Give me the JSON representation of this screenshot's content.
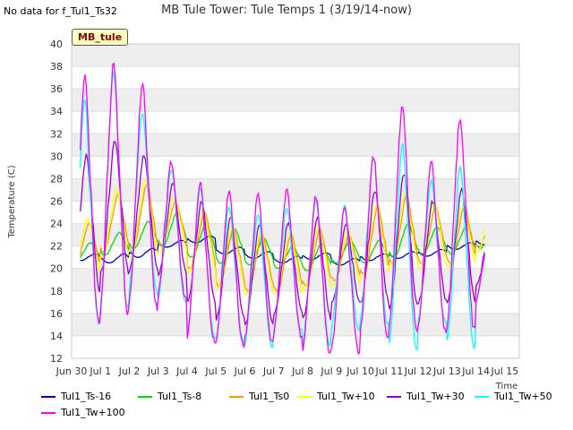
{
  "no_data_text": "No data for f_Tul1_Ts32",
  "station_tag": "MB_tule",
  "chart_data": {
    "type": "line",
    "title": "MB Tule Tower: Tule Temps 1 (3/19/14-now)",
    "xlabel": "Time",
    "ylabel": "Temperature (C)",
    "ylim": [
      12,
      40
    ],
    "yticks": [
      12,
      14,
      16,
      18,
      20,
      22,
      24,
      26,
      28,
      30,
      32,
      34,
      36,
      38,
      40
    ],
    "xlim": [
      0,
      15.5
    ],
    "xticks": [
      {
        "label": "Jun 30",
        "x": 0
      },
      {
        "label": "Jul 1",
        "x": 1
      },
      {
        "label": "Jul 2",
        "x": 2
      },
      {
        "label": "Jul 3",
        "x": 3
      },
      {
        "label": "Jul 4",
        "x": 4
      },
      {
        "label": "Jul 5",
        "x": 5
      },
      {
        "label": "Jul 6",
        "x": 6
      },
      {
        "label": "Jul 7",
        "x": 7
      },
      {
        "label": "Jul 8",
        "x": 8
      },
      {
        "label": "Jul 9",
        "x": 9
      },
      {
        "label": "Jul 10",
        "x": 10
      },
      {
        "label": "Jul 11",
        "x": 11
      },
      {
        "label": "Jul 12",
        "x": 12
      },
      {
        "label": "Jul 13",
        "x": 13
      },
      {
        "label": "Jul 14",
        "x": 14
      },
      {
        "label": "Jul 15",
        "x": 15
      }
    ],
    "grid": true,
    "legend_position": "bottom",
    "x_range_data": [
      0.3,
      14.3
    ],
    "series": [
      {
        "name": "Tul1_Ts-16",
        "color": "#0000cc",
        "mean": [
          21.0,
          20.9,
          21.4,
          22.2,
          22.6,
          21.6,
          21.2,
          20.8,
          21.1,
          20.6,
          21.0,
          21.2,
          21.4,
          22.0,
          22.4
        ],
        "amp": [
          0.3,
          0.4,
          0.4,
          0.3,
          0.3,
          0.3,
          0.3,
          0.3,
          0.3,
          0.3,
          0.3,
          0.3,
          0.3,
          0.3,
          0.3
        ],
        "phase": 0.8
      },
      {
        "name": "Tul1_Ts-8",
        "color": "#00e000",
        "mean": [
          21.5,
          22.2,
          23.0,
          23.5,
          22.5,
          22.0,
          21.5,
          21.0,
          21.0,
          21.5,
          21.5,
          22.5,
          22.5,
          22.5,
          23.0
        ],
        "amp": [
          0.8,
          1.0,
          1.2,
          1.5,
          1.5,
          1.5,
          1.2,
          1.0,
          1.2,
          1.0,
          1.0,
          1.5,
          1.2,
          1.2,
          1.2
        ],
        "phase": 0.65
      },
      {
        "name": "Tul1_Ts0",
        "color": "#ff9900",
        "mean": [
          22.0,
          24.0,
          24.5,
          24.0,
          22.5,
          21.0,
          20.5,
          20.5,
          21.0,
          21.0,
          22.5,
          23.5,
          23.0,
          23.0,
          23.5
        ],
        "amp": [
          2.0,
          2.5,
          3.0,
          2.0,
          2.5,
          2.5,
          2.5,
          2.5,
          2.5,
          2.0,
          3.0,
          3.0,
          2.5,
          2.5,
          1.5
        ],
        "phase": 0.6
      },
      {
        "name": "Tul1_Tw+10",
        "color": "#ffff00",
        "mean": [
          22.0,
          24.0,
          24.5,
          24.0,
          22.5,
          21.0,
          20.5,
          20.5,
          21.0,
          21.0,
          22.5,
          23.5,
          23.0,
          23.0,
          23.5
        ],
        "amp": [
          2.5,
          3.0,
          3.5,
          2.5,
          2.8,
          2.8,
          2.8,
          2.8,
          2.8,
          2.5,
          3.2,
          3.2,
          3.0,
          2.8,
          2.0
        ],
        "phase": 0.55
      },
      {
        "name": "Tul1_Tw+30",
        "color": "#9900cc",
        "mean": [
          24.0,
          25.5,
          25.0,
          23.5,
          21.5,
          20.0,
          19.5,
          20.0,
          20.0,
          20.5,
          22.0,
          22.5,
          21.5,
          22.0,
          21.0
        ],
        "amp": [
          6.0,
          6.0,
          5.0,
          4.0,
          4.5,
          4.5,
          4.5,
          4.0,
          4.5,
          3.5,
          5.0,
          6.0,
          4.5,
          5.0,
          2.5
        ],
        "phase": 0.5
      },
      {
        "name": "Tul1_Tw+50",
        "color": "#00ffff",
        "mean": [
          25.0,
          27.0,
          26.0,
          23.0,
          20.5,
          19.5,
          19.0,
          20.0,
          19.5,
          20.0,
          22.5,
          22.0,
          21.5,
          21.0,
          20.0
        ],
        "amp": [
          10.0,
          10.5,
          8.0,
          6.0,
          6.5,
          6.0,
          6.0,
          5.5,
          6.5,
          5.5,
          7.5,
          9.0,
          6.5,
          8.0,
          3.0
        ],
        "phase": 0.45
      },
      {
        "name": "Tul1_Tw+100",
        "color": "#ff00ff",
        "mean": [
          26.0,
          27.0,
          26.5,
          23.5,
          20.5,
          20.0,
          20.0,
          20.5,
          19.5,
          19.0,
          22.0,
          24.5,
          22.0,
          24.0,
          20.0
        ],
        "amp": [
          11.0,
          11.0,
          10.0,
          6.0,
          7.0,
          7.0,
          6.5,
          6.5,
          7.0,
          6.5,
          8.0,
          10.0,
          7.5,
          9.5,
          3.0
        ],
        "phase": 0.45
      }
    ]
  }
}
